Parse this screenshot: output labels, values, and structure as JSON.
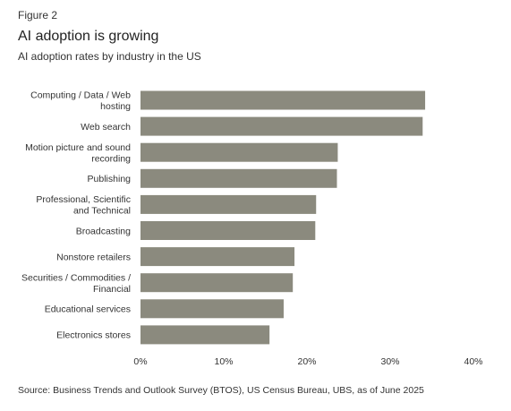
{
  "figure_label": "Figure 2",
  "source": "Source: Business Trends and Outlook Survey (BTOS), US Census Bureau, UBS, as of June 2025",
  "chart_data": {
    "type": "bar",
    "orientation": "horizontal",
    "title": "AI adoption is growing",
    "subtitle": "AI adoption rates by industry in the US",
    "categories": [
      [
        "Computing / Data / Web",
        "hosting"
      ],
      [
        "Web search"
      ],
      [
        "Motion picture and sound",
        "recording"
      ],
      [
        "Publishing"
      ],
      [
        "Professional, Scientific",
        "and Technical"
      ],
      [
        "Broadcasting"
      ],
      [
        "Nonstore retailers"
      ],
      [
        "Securities / Commodities /",
        "Financial"
      ],
      [
        "Educational services"
      ],
      [
        "Electronics stores"
      ]
    ],
    "values": [
      34.2,
      33.9,
      23.7,
      23.6,
      21.1,
      21.0,
      18.5,
      18.3,
      17.2,
      15.5
    ],
    "xlim": [
      0,
      40
    ],
    "xticks": [
      0,
      10,
      20,
      30,
      40
    ],
    "xtick_labels": [
      "0%",
      "10%",
      "20%",
      "30%",
      "40%"
    ],
    "xlabel": "",
    "ylabel": "",
    "grid": false,
    "bar_color": "#8b8a7e"
  }
}
